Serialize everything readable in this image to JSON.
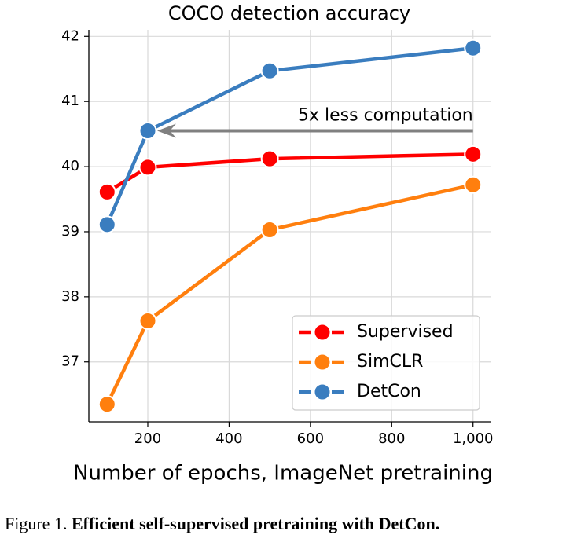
{
  "chart_data": {
    "type": "line",
    "title": "COCO detection accuracy",
    "x_label": "Number of epochs, ImageNet pretraining",
    "x": [
      100,
      200,
      500,
      1000
    ],
    "series": [
      {
        "name": "Supervised",
        "color": "#ff0000",
        "values": [
          39.61,
          39.99,
          40.12,
          40.19
        ]
      },
      {
        "name": "SimCLR",
        "color": "#ff7f0e",
        "values": [
          36.35,
          37.63,
          39.03,
          39.72
        ]
      },
      {
        "name": "DetCon",
        "color": "#3a7dbf",
        "values": [
          39.11,
          40.55,
          41.47,
          41.82
        ]
      }
    ],
    "annotation": "5x less computation",
    "xlim": [
      55,
      1045
    ],
    "ylim": [
      36.08,
      42.1
    ],
    "xticks": [
      200,
      400,
      600,
      800,
      {
        "value": 1000,
        "label": "1,000"
      }
    ],
    "yticks": [
      37,
      38,
      39,
      40,
      41,
      42
    ],
    "grid": true,
    "legend": "lower right"
  },
  "caption": {
    "label": "Figure 1.",
    "text": "Efficient self-supervised pretraining with DetCon."
  }
}
